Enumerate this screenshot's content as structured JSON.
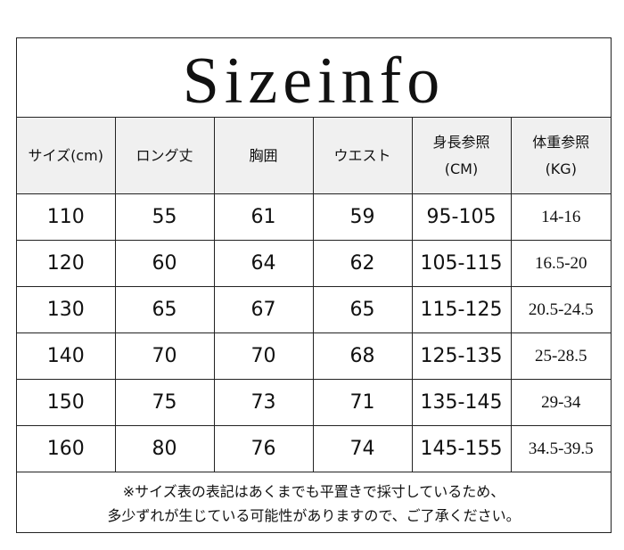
{
  "title": "Sizeinfo",
  "headers": [
    "サイズ(cm)",
    "ロング丈",
    "胸囲",
    "ウエスト",
    "身長参照\n(CM)",
    "体重参照\n(KG)"
  ],
  "headers_split": [
    [
      "サイズ(cm)"
    ],
    [
      "ロング丈"
    ],
    [
      "胸囲"
    ],
    [
      "ウエスト"
    ],
    [
      "身長参照",
      "(CM)"
    ],
    [
      "体重参照",
      "(KG)"
    ]
  ],
  "rows": [
    [
      "110",
      "55",
      "61",
      "59",
      "95-105",
      "14-16"
    ],
    [
      "120",
      "60",
      "64",
      "62",
      "105-115",
      "16.5-20"
    ],
    [
      "130",
      "65",
      "67",
      "65",
      "115-125",
      "20.5-24.5"
    ],
    [
      "140",
      "70",
      "70",
      "68",
      "125-135",
      "25-28.5"
    ],
    [
      "150",
      "75",
      "73",
      "71",
      "135-145",
      "29-34"
    ],
    [
      "160",
      "80",
      "76",
      "74",
      "145-155",
      "34.5-39.5"
    ]
  ],
  "note": [
    "※サイズ表の表記はあくまでも平置きで採寸しているため、",
    "多少ずれが生じている可能性がありますので、ご了承ください。"
  ]
}
